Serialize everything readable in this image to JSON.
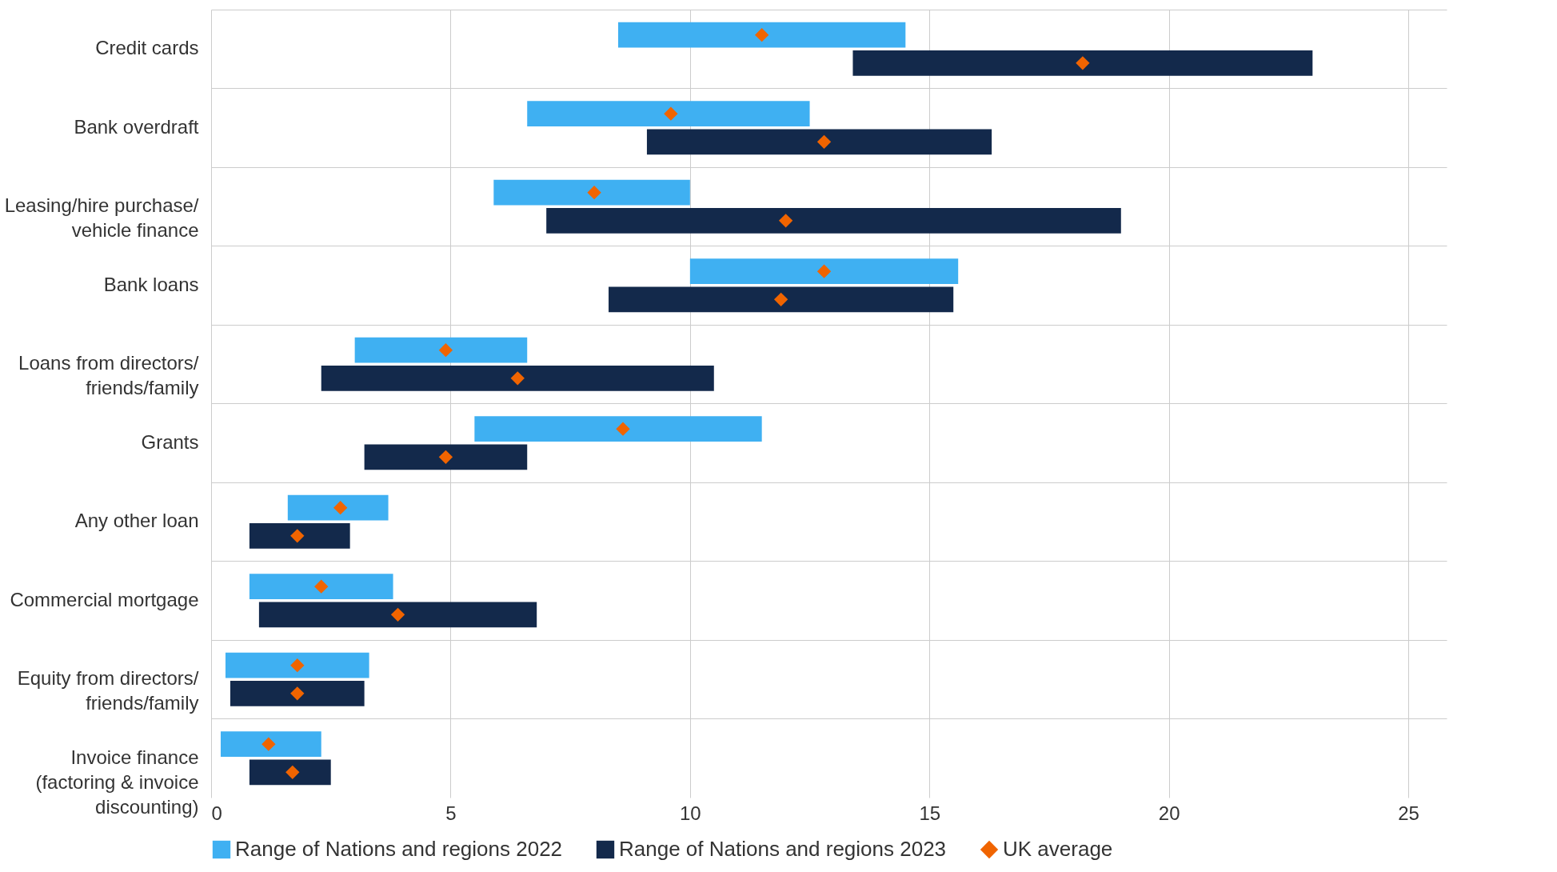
{
  "chart_data": {
    "type": "bar",
    "orientation": "horizontal",
    "categories": [
      "Credit cards",
      "Bank overdraft",
      "Leasing/hire purchase/\nvehicle finance",
      "Bank loans",
      "Loans from directors/\nfriends/family",
      "Grants",
      "Any other loan",
      "Commercial mortgage",
      "Equity from directors/\nfriends/family",
      "Invoice finance\n(factoring & invoice\ndiscounting)"
    ],
    "xlim": [
      0,
      25.8
    ],
    "xticks": [
      0,
      5,
      10,
      15,
      20,
      25
    ],
    "grid": true,
    "legend": "bottom",
    "series": [
      {
        "name": "Range of Nations and regions 2022",
        "color": "#3fb0f2",
        "base": [
          8.5,
          6.6,
          5.9,
          10.0,
          3.0,
          5.5,
          1.6,
          0.8,
          0.3,
          0.2
        ],
        "values": [
          6.0,
          5.9,
          4.1,
          5.6,
          3.6,
          6.0,
          2.1,
          3.0,
          3.0,
          2.1
        ]
      },
      {
        "name": "Range of Nations and regions 2023",
        "color": "#13294b",
        "base": [
          13.4,
          9.1,
          7.0,
          8.3,
          2.3,
          3.2,
          0.8,
          1.0,
          0.4,
          0.8
        ],
        "values": [
          9.6,
          7.2,
          12.0,
          7.2,
          8.2,
          3.4,
          2.1,
          5.8,
          2.8,
          1.7
        ]
      },
      {
        "name": "UK average",
        "type": "scatter",
        "marker": "diamond",
        "color": "#f06400",
        "values": [
          11.5,
          9.6,
          8.0,
          12.8,
          4.9,
          8.6,
          2.7,
          2.3,
          1.8,
          1.2
        ]
      },
      {
        "type": "scatter",
        "marker": "diamond",
        "color": "#f06400",
        "values": [
          18.2,
          12.8,
          12.0,
          11.9,
          6.4,
          4.9,
          1.8,
          3.9,
          1.8,
          1.7
        ]
      }
    ]
  }
}
